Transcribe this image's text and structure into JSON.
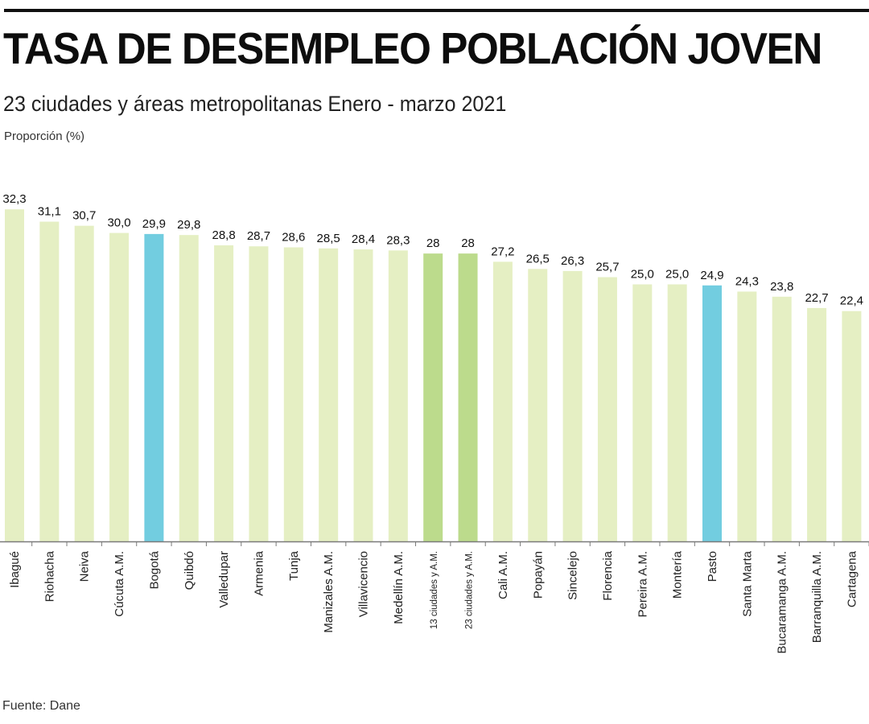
{
  "header": {
    "title": "TASA DE DESEMPLEO POBLACIÓN JOVEN",
    "subtitle": "23 ciudades y áreas metropolitanas Enero - marzo 2021",
    "y_axis_label": "Proporción (%)"
  },
  "footer": {
    "source": "Fuente: Dane"
  },
  "colors": {
    "default_bar": "#e5efc3",
    "highlight_city": "#72cde0",
    "aggregate": "#bcdb8c",
    "axis": "#7a7a7a"
  },
  "chart_data": {
    "type": "bar",
    "title": "TASA DE DESEMPLEO POBLACIÓN JOVEN",
    "subtitle": "23 ciudades y áreas metropolitanas Enero - marzo 2021",
    "xlabel": "",
    "ylabel": "Proporción (%)",
    "ylim": [
      0,
      33
    ],
    "grid": false,
    "legend": "none",
    "categories": [
      "Ibagué",
      "Riohacha",
      "Neiva",
      "Cúcuta A.M.",
      "Bogotá",
      "Quibdó",
      "Valledupar",
      "Armenia",
      "Tunja",
      "Manizales A.M.",
      "Villavicencio",
      "Medellín A.M.",
      "13 ciudades y A.M.",
      "23 ciudades y A.M.",
      "Cali A.M.",
      "Popayán",
      "Sincelejo",
      "Florencia",
      "Pereira  A.M.",
      "Montería",
      "Pasto",
      "Santa Marta",
      "Bucaramanga A.M.",
      "Barranquilla A.M.",
      "Cartagena"
    ],
    "values": [
      32.3,
      31.1,
      30.7,
      30.0,
      29.9,
      29.8,
      28.8,
      28.7,
      28.6,
      28.5,
      28.4,
      28.3,
      28,
      28,
      27.2,
      26.5,
      26.3,
      25.7,
      25.0,
      25.0,
      24.9,
      24.3,
      23.8,
      22.7,
      22.4
    ],
    "value_labels": [
      "32,3",
      "31,1",
      "30,7",
      "30,0",
      "29,9",
      "29,8",
      "28,8",
      "28,7",
      "28,6",
      "28,5",
      "28,4",
      "28,3",
      "28",
      "28",
      "27,2",
      "26,5",
      "26,3",
      "25,7",
      "25,0",
      "25,0",
      "24,9",
      "24,3",
      "23,8",
      "22,7",
      "22,4"
    ],
    "bar_kind": [
      "default",
      "default",
      "default",
      "default",
      "highlight_city",
      "default",
      "default",
      "default",
      "default",
      "default",
      "default",
      "default",
      "aggregate",
      "aggregate",
      "default",
      "default",
      "default",
      "default",
      "default",
      "default",
      "highlight_city",
      "default",
      "default",
      "default",
      "default"
    ]
  }
}
